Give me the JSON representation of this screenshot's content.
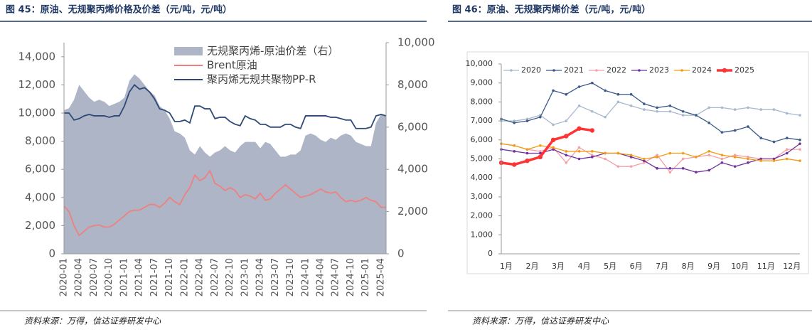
{
  "chart_data": [
    {
      "type": "combo",
      "title": "图 45：原油、无规聚丙烯价格及价差（元/吨，元/吨）",
      "source": "资料来源：万得，信达证券研发中心",
      "categories": [
        "2020-01",
        null,
        null,
        "2020-04",
        null,
        null,
        "2020-07",
        null,
        null,
        "2020-10",
        null,
        null,
        "2021-01",
        null,
        null,
        "2021-04",
        null,
        null,
        "2021-07",
        null,
        null,
        "2021-10",
        null,
        null,
        "2022-01",
        null,
        null,
        "2022-04",
        null,
        null,
        "2022-07",
        null,
        null,
        "2022-10",
        null,
        null,
        "2023-01",
        null,
        null,
        "2023-04",
        null,
        null,
        "2023-07",
        null,
        null,
        "2023-10",
        null,
        null,
        "2024-01",
        null,
        null,
        "2024-04",
        null,
        null,
        "2024-07",
        null,
        null,
        "2024-10",
        null,
        null,
        "2025-01",
        null,
        null,
        "2025-04",
        null
      ],
      "ylim": [
        0,
        15000
      ],
      "yticks": [
        0,
        {
          "value": 2000,
          "label": "2,000"
        },
        {
          "value": 4000,
          "label": "4,000"
        },
        {
          "value": 6000,
          "label": "6,000"
        },
        {
          "value": 8000,
          "label": "8,000"
        },
        {
          "value": 10000,
          "label": "10,000"
        },
        {
          "value": 12000,
          "label": "12,000"
        },
        {
          "value": 14000,
          "label": "14,000"
        }
      ],
      "y2lim": [
        0,
        10000
      ],
      "y2ticks": [
        0,
        {
          "value": 2000,
          "label": "2,000"
        },
        {
          "value": 4000,
          "label": "4,000"
        },
        {
          "value": 6000,
          "label": "6,000"
        },
        {
          "value": 8000,
          "label": "8,000"
        },
        {
          "value": 10000,
          "label": "10,000"
        }
      ],
      "legend": "top-center",
      "series": [
        {
          "name": "无规聚丙烯-原油价差（右）",
          "type": "area",
          "axis": "y2",
          "color": "#adb5c6",
          "values": [
            6800,
            6900,
            7300,
            8000,
            7700,
            7400,
            7200,
            7300,
            7200,
            7000,
            7100,
            7200,
            7400,
            8200,
            8500,
            8300,
            8000,
            7700,
            7500,
            7000,
            6800,
            6400,
            5800,
            5700,
            5500,
            4900,
            4700,
            5100,
            4800,
            4600,
            4800,
            4900,
            5100,
            4900,
            4800,
            5100,
            5300,
            5300,
            5300,
            5000,
            5300,
            5200,
            4900,
            4600,
            4600,
            4700,
            4700,
            4900,
            5600,
            5700,
            5600,
            5400,
            5300,
            5500,
            5400,
            5600,
            5700,
            5600,
            5300,
            5200,
            5100,
            5100,
            6200,
            6600,
            6500
          ]
        },
        {
          "name": "Brent原油",
          "type": "line",
          "color": "#f08080",
          "values": [
            3400,
            3000,
            2000,
            1300,
            1600,
            1900,
            2000,
            2050,
            1900,
            1900,
            2100,
            2400,
            2700,
            3000,
            3100,
            3100,
            3300,
            3500,
            3500,
            3300,
            3600,
            4000,
            3700,
            3500,
            4200,
            4700,
            5600,
            5200,
            5400,
            5900,
            5000,
            4800,
            4500,
            4700,
            4500,
            4000,
            4200,
            4100,
            3900,
            4300,
            3800,
            3900,
            4300,
            4600,
            4900,
            4600,
            4300,
            4000,
            4100,
            4200,
            4400,
            4600,
            4400,
            4300,
            4400,
            4000,
            3700,
            3800,
            3700,
            3800,
            4000,
            3800,
            3700,
            3300,
            3300
          ]
        },
        {
          "name": "聚丙烯无规共聚物PP-R",
          "type": "line",
          "color": "#2f4a78",
          "values": [
            10000,
            10000,
            9500,
            9600,
            9800,
            9900,
            9800,
            9800,
            9800,
            9700,
            9800,
            9800,
            10500,
            11500,
            12000,
            11700,
            11800,
            11500,
            11000,
            10300,
            10200,
            10000,
            9400,
            9400,
            9500,
            9300,
            10500,
            10500,
            10300,
            10300,
            9600,
            9700,
            9700,
            9400,
            9200,
            9100,
            9800,
            9600,
            9500,
            9200,
            9200,
            9000,
            9000,
            9000,
            9200,
            9200,
            9000,
            8900,
            9800,
            9800,
            9800,
            9800,
            9800,
            9700,
            9700,
            9600,
            9500,
            9500,
            8900,
            8900,
            8900,
            9000,
            9800,
            9900,
            9800
          ]
        }
      ]
    },
    {
      "type": "line",
      "title": "图 46：原油、无规聚丙烯价差（元/吨，元/吨）",
      "source": "资料来源：万得，信达证券研发中心",
      "categories": [
        "1月",
        null,
        "2月",
        null,
        "3月",
        null,
        "4月",
        null,
        "5月",
        null,
        "6月",
        null,
        "7月",
        null,
        "8月",
        null,
        "9月",
        null,
        "10月",
        null,
        "11月",
        null,
        "12月",
        null
      ],
      "ylim": [
        0,
        10000
      ],
      "yticks": [
        0,
        {
          "value": 1000,
          "label": "1,000"
        },
        {
          "value": 2000,
          "label": "2,000"
        },
        {
          "value": 3000,
          "label": "3,000"
        },
        {
          "value": 4000,
          "label": "4,000"
        },
        {
          "value": 5000,
          "label": "5,000"
        },
        {
          "value": 6000,
          "label": "6,000"
        },
        {
          "value": 7000,
          "label": "7,000"
        },
        {
          "value": 8000,
          "label": "8,000"
        },
        {
          "value": 9000,
          "label": "9,000"
        },
        {
          "value": 10000,
          "label": "10,000"
        }
      ],
      "legend": "top",
      "series": [
        {
          "name": "2020",
          "color": "#a9b8cc",
          "values": [
            7000,
            7000,
            7100,
            7300,
            6800,
            7000,
            7800,
            7500,
            7200,
            8000,
            7800,
            7600,
            7500,
            7500,
            7300,
            7300,
            7700,
            7700,
            7600,
            7700,
            7600,
            7600,
            7400,
            7300
          ]
        },
        {
          "name": "2021",
          "color": "#3b5a8a",
          "values": [
            7100,
            6900,
            7000,
            7200,
            8600,
            8400,
            8800,
            9000,
            8600,
            8400,
            8400,
            7900,
            7700,
            7800,
            7500,
            7300,
            6900,
            6400,
            6500,
            6700,
            6100,
            5900,
            6100,
            6000
          ]
        },
        {
          "name": "2022",
          "color": "#f4a0a8",
          "values": [
            5800,
            5700,
            5500,
            5400,
            5600,
            4800,
            5600,
            5200,
            5000,
            4600,
            4600,
            4800,
            5200,
            4300,
            5000,
            5100,
            5200,
            5000,
            5200,
            5100,
            5000,
            5000,
            5500,
            5500
          ]
        },
        {
          "name": "2023",
          "color": "#7030a0",
          "values": [
            5500,
            5400,
            5300,
            5300,
            5500,
            5200,
            5000,
            5100,
            5300,
            5300,
            5100,
            4900,
            4500,
            4500,
            4500,
            4300,
            4400,
            4800,
            4600,
            4800,
            5000,
            5000,
            5300,
            5800
          ]
        },
        {
          "name": "2024",
          "color": "#f39c12",
          "values": [
            5800,
            5700,
            5500,
            5700,
            5600,
            5400,
            5400,
            5400,
            5300,
            5300,
            5200,
            5000,
            5100,
            5300,
            5300,
            5100,
            5400,
            5200,
            5100,
            5000,
            4900,
            4900,
            5000,
            4900
          ]
        },
        {
          "name": "2025",
          "color": "#ff3333",
          "values": [
            4800,
            4700,
            4900,
            5100,
            6000,
            6200,
            6600,
            6500,
            null,
            null,
            null,
            null,
            null,
            null,
            null,
            null,
            null,
            null,
            null,
            null,
            null,
            null,
            null,
            null
          ]
        }
      ]
    }
  ]
}
